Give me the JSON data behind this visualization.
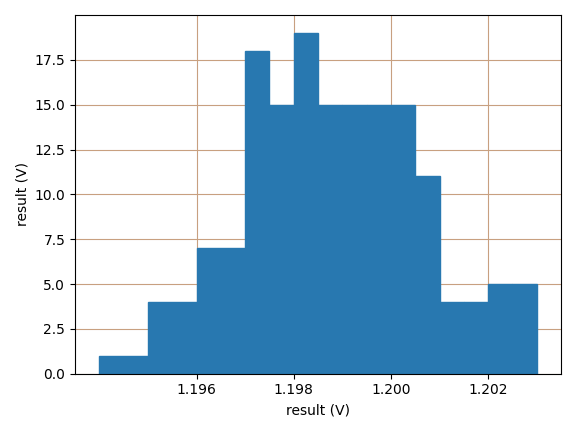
{
  "bin_edges": [
    1.194,
    1.195,
    1.196,
    1.197,
    1.1975,
    1.198,
    1.1985,
    1.199,
    1.1995,
    1.2,
    1.2005,
    1.201,
    1.2015,
    1.202,
    1.2025,
    1.203
  ],
  "heights": [
    1,
    4,
    7,
    18,
    15,
    19,
    15,
    15,
    15,
    15,
    11,
    4,
    4,
    5,
    5
  ],
  "bar_color": "#2878b0",
  "xlabel": "result (V)",
  "ylabel": "result (V)",
  "xlim": [
    1.1935,
    1.2035
  ],
  "ylim": [
    0,
    20
  ],
  "grid_color": "#c8a080",
  "background_color": "#ffffff",
  "figsize": [
    5.76,
    4.32
  ],
  "dpi": 100,
  "xticks": [
    1.196,
    1.198,
    1.2,
    1.202
  ],
  "yticks": [
    0.0,
    2.5,
    5.0,
    7.5,
    10.0,
    12.5,
    15.0,
    17.5
  ]
}
